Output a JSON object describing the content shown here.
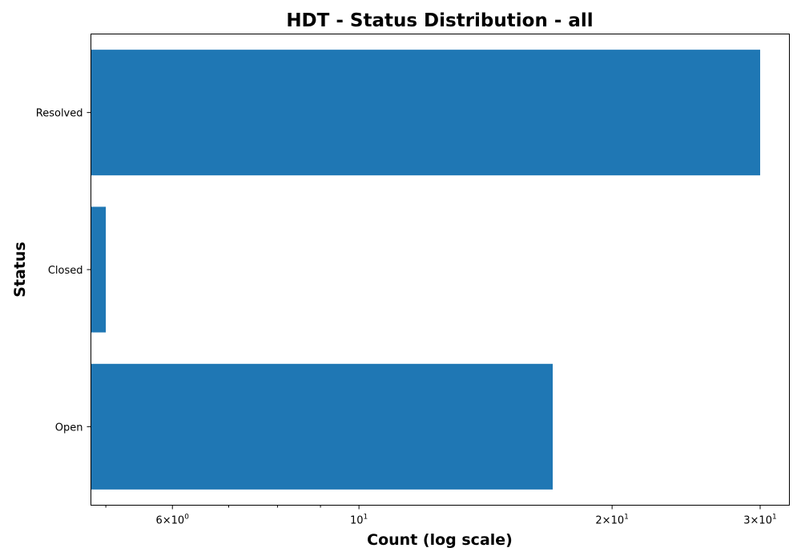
{
  "chart_data": {
    "type": "bar",
    "orientation": "horizontal",
    "title": "HDT - Status Distribution - all",
    "xlabel": "Count (log scale)",
    "ylabel": "Status",
    "x_scale": "log",
    "xlim": [
      4.8,
      32.5
    ],
    "categories": [
      "Resolved",
      "Closed",
      "Open"
    ],
    "values": [
      30,
      5,
      17
    ],
    "bar_color": "#1f77b4",
    "grid": false,
    "legend": "none",
    "x_major_ticks": [
      {
        "value": 6,
        "base": "6",
        "exp": "0"
      },
      {
        "value": 10,
        "base": "10",
        "exp": "1"
      },
      {
        "value": 20,
        "base": "2",
        "exp": "1"
      },
      {
        "value": 30,
        "base": "3",
        "exp": "1"
      }
    ],
    "x_minor_ticks": [
      5,
      7,
      8,
      9
    ]
  }
}
